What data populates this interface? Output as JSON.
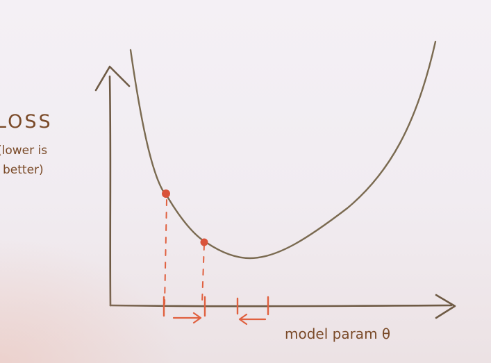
{
  "labels": {
    "y_axis_title": "LOSS",
    "y_axis_note_line1": "(lower is",
    "y_axis_note_line2": "better)",
    "x_axis_title": "model param θ"
  },
  "colors": {
    "ink": "#6e5a44",
    "curve": "#7a6a50",
    "marker": "#d9533a",
    "guide": "#e0603f",
    "board": "#f3eef3"
  }
}
